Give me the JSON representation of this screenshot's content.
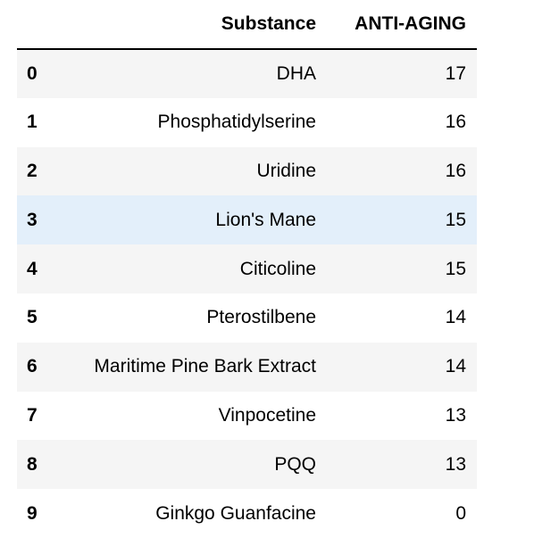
{
  "table": {
    "columns": {
      "index": "",
      "substance": "Substance",
      "anti_aging": "ANTI-AGING"
    },
    "rows": [
      {
        "index": "0",
        "substance": "DHA",
        "anti_aging": "17"
      },
      {
        "index": "1",
        "substance": "Phosphatidylserine",
        "anti_aging": "16"
      },
      {
        "index": "2",
        "substance": "Uridine",
        "anti_aging": "16"
      },
      {
        "index": "3",
        "substance": "Lion's Mane",
        "anti_aging": "15"
      },
      {
        "index": "4",
        "substance": "Citicoline",
        "anti_aging": "15"
      },
      {
        "index": "5",
        "substance": "Pterostilbene",
        "anti_aging": "14"
      },
      {
        "index": "6",
        "substance": "Maritime Pine Bark Extract",
        "anti_aging": "14"
      },
      {
        "index": "7",
        "substance": "Vinpocetine",
        "anti_aging": "13"
      },
      {
        "index": "8",
        "substance": "PQQ",
        "anti_aging": "13"
      },
      {
        "index": "9",
        "substance": "Ginkgo Guanfacine",
        "anti_aging": "0"
      }
    ],
    "highlighted_row_index": "3",
    "colors": {
      "striped_row": "#f5f5f5",
      "hover_row": "#e3effa",
      "header_rule": "#000000"
    }
  }
}
